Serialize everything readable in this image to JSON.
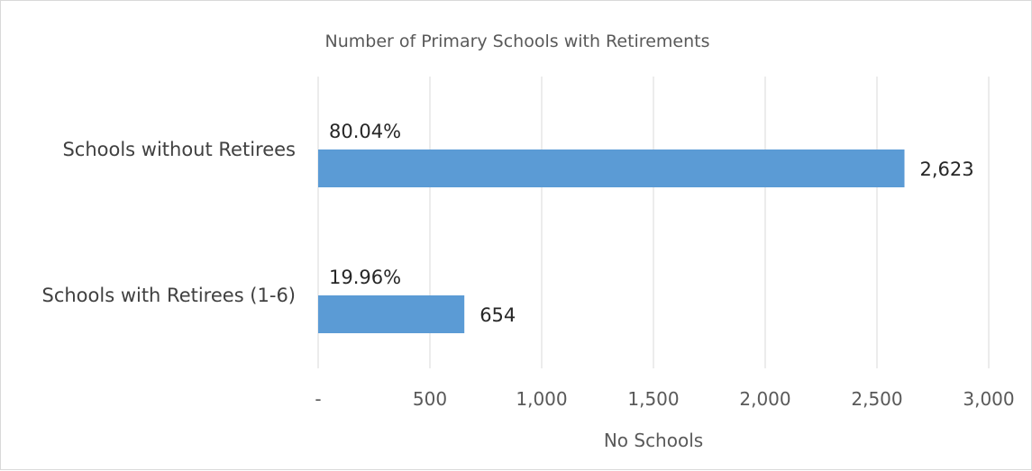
{
  "chart_data": {
    "type": "bar",
    "orientation": "horizontal",
    "title": "Number of Primary Schools with Retirements",
    "xlabel": "No Schools",
    "ylabel": "",
    "categories": [
      "Schools without Retirees",
      "Schools with Retirees (1-6)"
    ],
    "values": [
      2623,
      654
    ],
    "value_labels": [
      "2,623",
      "654"
    ],
    "percent_labels": [
      "80.04%",
      "19.96%"
    ],
    "xlim": [
      0,
      3000
    ],
    "x_ticks": [
      0,
      500,
      1000,
      1500,
      2000,
      2500,
      3000
    ],
    "x_tick_labels": [
      "-",
      "500",
      "1,000",
      "1,500",
      "2,000",
      "2,500",
      "3,000"
    ],
    "grid": "vertical",
    "legend": "none",
    "colors": {
      "bar": "#5b9bd5",
      "grid": "#d9d9d9",
      "text": "#595959"
    }
  }
}
